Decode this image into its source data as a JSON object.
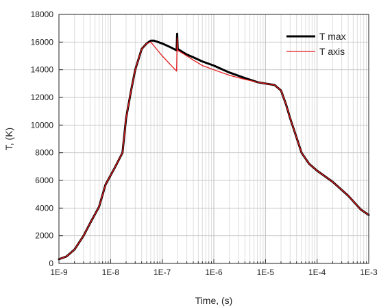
{
  "chart_data": {
    "type": "line",
    "title": "",
    "xlabel": "Time, (s)",
    "ylabel": "T, (K)",
    "xscale": "log",
    "xlim": [
      1e-09,
      0.001
    ],
    "ylim": [
      0,
      18000
    ],
    "x_ticks": [
      1e-09,
      1e-08,
      1e-07,
      1e-06,
      1e-05,
      0.0001,
      0.001
    ],
    "x_tick_labels": [
      "1E-9",
      "1E-8",
      "1E-7",
      "1E-6",
      "1E-5",
      "1E-4",
      "1E-3"
    ],
    "y_ticks": [
      0,
      2000,
      4000,
      6000,
      8000,
      10000,
      12000,
      14000,
      16000,
      18000
    ],
    "y_tick_labels": [
      "0",
      "2000",
      "4000",
      "6000",
      "8000",
      "10000",
      "12000",
      "14000",
      "16000",
      "18000"
    ],
    "grid": true,
    "legend_position": "top-right",
    "series": [
      {
        "name": "T max",
        "color": "#000000",
        "line_width": "thick",
        "points": [
          [
            1e-09,
            300
          ],
          [
            1.4e-09,
            500
          ],
          [
            2e-09,
            1000
          ],
          [
            3e-09,
            2000
          ],
          [
            4e-09,
            2900
          ],
          [
            6e-09,
            4100
          ],
          [
            8e-09,
            5700
          ],
          [
            1.2e-08,
            6900
          ],
          [
            1.7e-08,
            8000
          ],
          [
            2e-08,
            10500
          ],
          [
            2.5e-08,
            12500
          ],
          [
            3e-08,
            14000
          ],
          [
            4e-08,
            15500
          ],
          [
            5e-08,
            15900
          ],
          [
            6e-08,
            16100
          ],
          [
            7e-08,
            16100
          ],
          [
            1e-07,
            15900
          ],
          [
            1.5e-07,
            15600
          ],
          [
            1.9e-07,
            15400
          ],
          [
            1.95e-07,
            16600
          ],
          [
            2e-07,
            15500
          ],
          [
            3e-07,
            15100
          ],
          [
            4e-07,
            14900
          ],
          [
            6e-07,
            14600
          ],
          [
            1e-06,
            14300
          ],
          [
            2e-06,
            13800
          ],
          [
            4e-06,
            13400
          ],
          [
            7e-06,
            13100
          ],
          [
            1e-05,
            13000
          ],
          [
            1.5e-05,
            12900
          ],
          [
            2e-05,
            12500
          ],
          [
            2.5e-05,
            11500
          ],
          [
            3e-05,
            10500
          ],
          [
            4e-05,
            9100
          ],
          [
            5e-05,
            8000
          ],
          [
            7e-05,
            7200
          ],
          [
            0.0001,
            6700
          ],
          [
            0.0002,
            5900
          ],
          [
            0.0004,
            4900
          ],
          [
            0.0007,
            3900
          ],
          [
            0.001,
            3500
          ]
        ]
      },
      {
        "name": "T axis",
        "color": "#e31a1c",
        "line_width": "thin",
        "points": [
          [
            1e-09,
            300
          ],
          [
            1.4e-09,
            500
          ],
          [
            2e-09,
            1000
          ],
          [
            3e-09,
            2000
          ],
          [
            4e-09,
            2900
          ],
          [
            6e-09,
            4100
          ],
          [
            8e-09,
            5700
          ],
          [
            1.2e-08,
            6900
          ],
          [
            1.7e-08,
            8000
          ],
          [
            2e-08,
            10500
          ],
          [
            2.5e-08,
            12500
          ],
          [
            3e-08,
            14000
          ],
          [
            4e-08,
            15500
          ],
          [
            5e-08,
            15900
          ],
          [
            6e-08,
            16000
          ],
          [
            7e-08,
            15700
          ],
          [
            1e-07,
            15000
          ],
          [
            1.5e-07,
            14300
          ],
          [
            1.9e-07,
            13900
          ],
          [
            1.95e-07,
            16300
          ],
          [
            2e-07,
            15400
          ],
          [
            3e-07,
            15000
          ],
          [
            4e-07,
            14700
          ],
          [
            6e-07,
            14300
          ],
          [
            1e-06,
            14000
          ],
          [
            2e-06,
            13600
          ],
          [
            4e-06,
            13300
          ],
          [
            7e-06,
            13100
          ],
          [
            1e-05,
            13000
          ],
          [
            1.5e-05,
            12900
          ],
          [
            2e-05,
            12500
          ],
          [
            2.5e-05,
            11500
          ],
          [
            3e-05,
            10500
          ],
          [
            4e-05,
            9100
          ],
          [
            5e-05,
            8000
          ],
          [
            7e-05,
            7200
          ],
          [
            0.0001,
            6700
          ],
          [
            0.0002,
            5900
          ],
          [
            0.0004,
            4900
          ],
          [
            0.0007,
            3900
          ],
          [
            0.001,
            3500
          ]
        ]
      }
    ]
  }
}
